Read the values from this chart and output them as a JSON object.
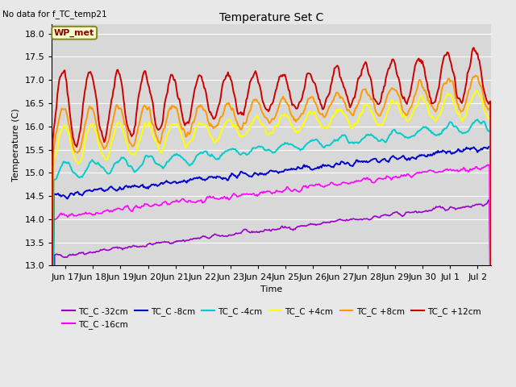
{
  "title": "Temperature Set C",
  "subtitle": "No data for f_TC_temp21",
  "xlabel": "Time",
  "ylabel": "Temperature (C)",
  "ylim": [
    13.0,
    18.2
  ],
  "annotation_text": "WP_met",
  "series_labels": [
    "TC_C -32cm",
    "TC_C -16cm",
    "TC_C -8cm",
    "TC_C -4cm",
    "TC_C +4cm",
    "TC_C +8cm",
    "TC_C +12cm"
  ],
  "series_colors": [
    "#9900cc",
    "#ff00ff",
    "#0000cc",
    "#00cccc",
    "#ffff00",
    "#ff9900",
    "#cc0000"
  ],
  "background_color": "#e8e8e8",
  "plot_bg_color": "#d8d8d8",
  "n_points": 480,
  "start_day": 16.5,
  "end_day": 32.5,
  "tick_labels": [
    "Jun 17",
    "Jun 18",
    "Jun 19",
    "Jun 20",
    "Jun 21",
    "Jun 22",
    "Jun 23",
    "Jun 24",
    "Jun 25",
    "Jun 26",
    "Jun 27",
    "Jun 28",
    "Jun 29",
    "Jun 30",
    "Jul 1",
    "Jul 2"
  ],
  "tick_positions": [
    17,
    18,
    19,
    20,
    21,
    22,
    23,
    24,
    25,
    26,
    27,
    28,
    29,
    30,
    31,
    32
  ]
}
